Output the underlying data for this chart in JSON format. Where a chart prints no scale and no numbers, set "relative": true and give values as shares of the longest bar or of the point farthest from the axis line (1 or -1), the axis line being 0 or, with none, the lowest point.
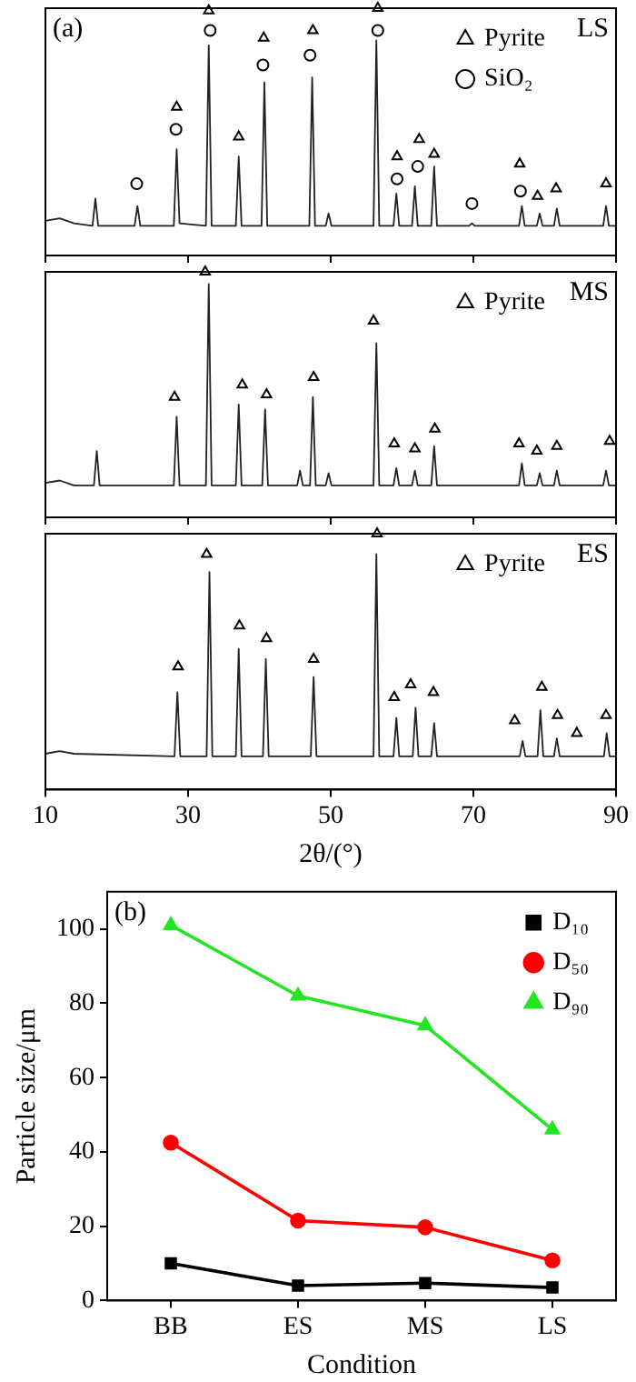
{
  "chart_data": [
    {
      "type": "line",
      "relative": true,
      "xlim": [
        10,
        90
      ],
      "xticks": [
        10,
        30,
        50,
        70,
        90
      ],
      "tick_labels": false,
      "legend": "top right",
      "marker": "none",
      "annotations": [
        "(a)",
        "LS"
      ],
      "series": [
        {
          "color": "#222222",
          "x": [
            10,
            12,
            14,
            16.6,
            17.0,
            17.4,
            22.5,
            22.9,
            23.3,
            28.0,
            28.4,
            28.8,
            32.5,
            32.9,
            33.3,
            36.7,
            37.1,
            37.5,
            40.3,
            40.7,
            41.1,
            47.0,
            47.4,
            47.8,
            49.3,
            49.7,
            50.1,
            56.0,
            56.4,
            56.8,
            58.8,
            59.2,
            59.6,
            61.4,
            61.8,
            62.2,
            64.1,
            64.5,
            64.9,
            69.4,
            69.8,
            70.2,
            76.4,
            76.8,
            77.2,
            78.9,
            79.3,
            79.7,
            81.3,
            81.7,
            82.1,
            88.2,
            88.6,
            89.0,
            90
          ],
          "values": [
            0.14,
            0.15,
            0.13,
            0.12,
            0.23,
            0.12,
            0.12,
            0.2,
            0.12,
            0.12,
            0.43,
            0.13,
            0.12,
            0.85,
            0.12,
            0.12,
            0.4,
            0.12,
            0.12,
            0.7,
            0.12,
            0.12,
            0.72,
            0.12,
            0.12,
            0.17,
            0.12,
            0.12,
            0.87,
            0.12,
            0.12,
            0.25,
            0.12,
            0.12,
            0.28,
            0.12,
            0.12,
            0.36,
            0.12,
            0.12,
            0.13,
            0.12,
            0.12,
            0.2,
            0.12,
            0.12,
            0.17,
            0.12,
            0.12,
            0.19,
            0.12,
            0.12,
            0.2,
            0.12,
            0.12
          ]
        },
        {
          "type": "scatter",
          "name": "Pyrite",
          "marker": "triangle",
          "color": "#000000",
          "x": [
            28.4,
            32.9,
            37.1,
            40.6,
            47.5,
            56.6,
            59.3,
            62.4,
            64.5,
            76.5,
            79.0,
            81.6,
            88.6
          ],
          "values": [
            0.6,
            0.99,
            0.48,
            0.88,
            0.91,
            1,
            0.4,
            0.47,
            0.41,
            0.37,
            0.24,
            0.27,
            0.29
          ]
        },
        {
          "type": "scatter",
          "name": "SiO₂",
          "marker": "circle",
          "color": "#000000",
          "x": [
            22.8,
            28.3,
            33.1,
            40.5,
            47.1,
            56.6,
            59.3,
            62.2,
            69.8,
            76.6
          ],
          "values": [
            0.29,
            0.51,
            0.91,
            0.77,
            0.81,
            0.91,
            0.31,
            0.36,
            0.21,
            0.26
          ]
        }
      ]
    },
    {
      "type": "line",
      "relative": true,
      "xlim": [
        10,
        90
      ],
      "xticks": [
        10,
        30,
        50,
        70,
        90
      ],
      "tick_labels": false,
      "legend": "top right",
      "marker": "none",
      "annotations": [
        "MS"
      ],
      "series": [
        {
          "color": "#222222",
          "x": [
            10,
            12,
            14,
            16.8,
            17.2,
            17.6,
            28.0,
            28.4,
            28.8,
            32.5,
            32.9,
            33.3,
            36.7,
            37.1,
            37.5,
            40.4,
            40.8,
            41.2,
            45.3,
            45.7,
            46.1,
            47.1,
            47.5,
            47.9,
            49.3,
            49.7,
            50.1,
            56.0,
            56.4,
            56.8,
            58.8,
            59.2,
            59.6,
            61.4,
            61.8,
            62.2,
            64.1,
            64.5,
            64.9,
            76.4,
            76.8,
            77.2,
            78.9,
            79.3,
            79.7,
            81.3,
            81.7,
            82.1,
            88.2,
            88.6,
            89.0,
            90
          ],
          "values": [
            0.14,
            0.15,
            0.13,
            0.13,
            0.27,
            0.13,
            0.13,
            0.41,
            0.13,
            0.13,
            0.95,
            0.13,
            0.13,
            0.46,
            0.13,
            0.13,
            0.44,
            0.13,
            0.13,
            0.19,
            0.13,
            0.13,
            0.49,
            0.13,
            0.13,
            0.18,
            0.13,
            0.13,
            0.71,
            0.13,
            0.13,
            0.2,
            0.13,
            0.13,
            0.19,
            0.13,
            0.13,
            0.29,
            0.13,
            0.13,
            0.22,
            0.13,
            0.13,
            0.18,
            0.13,
            0.13,
            0.19,
            0.13,
            0.13,
            0.19,
            0.13,
            0.13
          ]
        },
        {
          "type": "scatter",
          "name": "Pyrite",
          "marker": "triangle",
          "color": "#000000",
          "x": [
            28.1,
            32.4,
            37.6,
            41.0,
            47.6,
            56.0,
            58.9,
            61.8,
            64.6,
            76.4,
            78.9,
            81.7,
            89.1
          ],
          "values": [
            0.49,
            1,
            0.54,
            0.5,
            0.57,
            0.8,
            0.3,
            0.28,
            0.36,
            0.3,
            0.27,
            0.29,
            0.31
          ]
        }
      ]
    },
    {
      "type": "line",
      "relative": true,
      "xlim": [
        10,
        90
      ],
      "xticks": [
        10,
        30,
        50,
        70,
        90
      ],
      "tick_labels": "x",
      "xlabel": "2θ/(°)",
      "legend": "top right",
      "marker": "none",
      "annotations": [
        "ES"
      ],
      "series": [
        {
          "color": "#222222",
          "x": [
            10,
            12,
            14,
            28.1,
            28.5,
            28.9,
            32.6,
            33.0,
            33.4,
            36.7,
            37.1,
            37.5,
            40.5,
            40.9,
            41.3,
            47.2,
            47.6,
            48.0,
            56.0,
            56.4,
            56.8,
            58.8,
            59.2,
            59.6,
            61.5,
            61.9,
            62.3,
            64.1,
            64.5,
            64.9,
            76.5,
            76.9,
            77.3,
            79.0,
            79.4,
            79.8,
            81.3,
            81.7,
            82.1,
            88.3,
            88.7,
            89.1,
            90
          ],
          "values": [
            0.14,
            0.15,
            0.14,
            0.13,
            0.38,
            0.13,
            0.13,
            0.85,
            0.13,
            0.13,
            0.55,
            0.13,
            0.13,
            0.51,
            0.13,
            0.13,
            0.44,
            0.13,
            0.13,
            0.92,
            0.13,
            0.13,
            0.28,
            0.13,
            0.13,
            0.32,
            0.13,
            0.13,
            0.26,
            0.13,
            0.13,
            0.19,
            0.13,
            0.13,
            0.31,
            0.13,
            0.13,
            0.2,
            0.13,
            0.13,
            0.22,
            0.13,
            0.13
          ]
        },
        {
          "type": "scatter",
          "name": "Pyrite",
          "marker": "triangle",
          "color": "#000000",
          "x": [
            28.6,
            32.6,
            37.2,
            41.0,
            47.6,
            56.5,
            58.9,
            61.2,
            64.4,
            75.8,
            79.6,
            81.8,
            84.5,
            88.6
          ],
          "values": [
            0.48,
            0.92,
            0.64,
            0.59,
            0.51,
            1,
            0.36,
            0.41,
            0.38,
            0.27,
            0.4,
            0.29,
            0.22,
            0.29
          ]
        }
      ]
    },
    {
      "type": "line",
      "categories": [
        "BB",
        "ES",
        "MS",
        "LS"
      ],
      "xlabel": "Condition",
      "ylabel": "Particle size/μm",
      "ylim": [
        0,
        110
      ],
      "yticks": [
        0,
        20,
        40,
        60,
        80,
        100
      ],
      "legend": "top right",
      "annotations": [
        "(b)"
      ],
      "series": [
        {
          "name": "D₁₀",
          "color": "#000000",
          "marker": "square",
          "values": [
            10,
            4,
            4.7,
            3.5
          ]
        },
        {
          "name": "D₅₀",
          "color": "#ff0000",
          "marker": "circle",
          "values": [
            42.5,
            21.5,
            19.7,
            10.8
          ]
        },
        {
          "name": "D₉₀",
          "color": "#22e622",
          "marker": "triangle",
          "values": [
            101,
            82,
            74,
            46
          ]
        }
      ]
    }
  ]
}
